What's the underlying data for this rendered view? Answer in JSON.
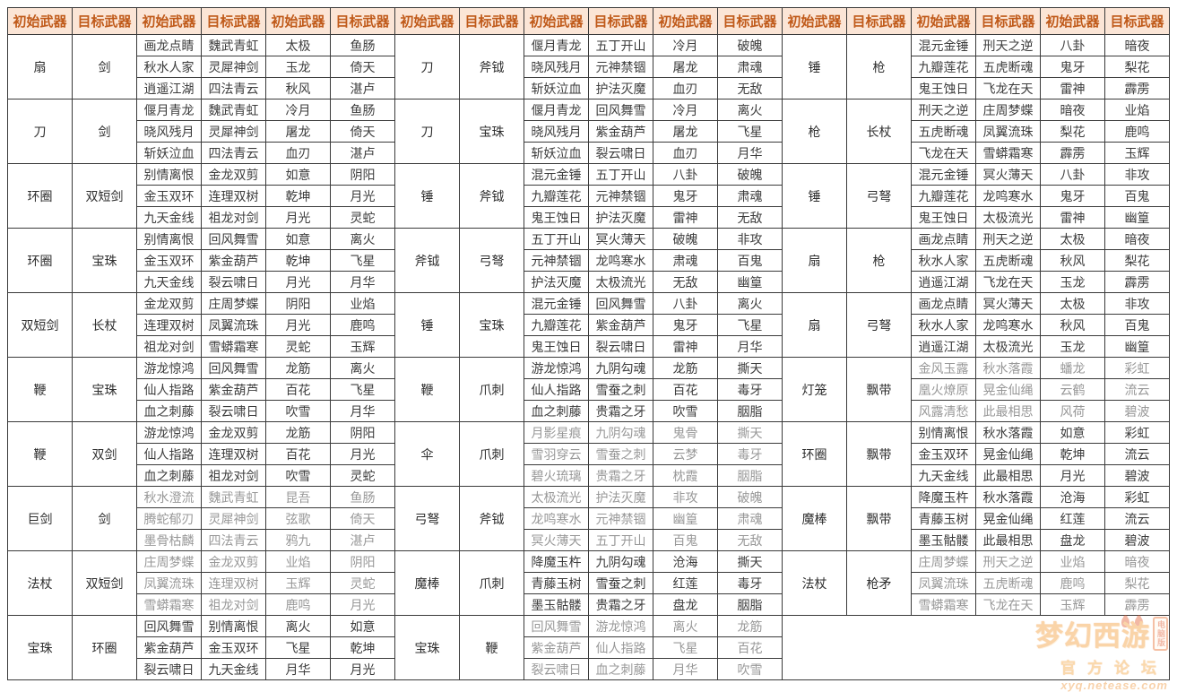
{
  "columns": {
    "initial": "初始武器",
    "target": "目标武器"
  },
  "colors": {
    "header_bg": "#fbe5d6",
    "header_text": "#c05a1a",
    "grid": "#3a3a3a",
    "text": "#3c3c3c",
    "muted_text": "#989898",
    "watermark_orange": "#f59b33"
  },
  "sections": [
    [
      {
        "initial": "扇",
        "target": "剑",
        "muted": false,
        "rows": [
          [
            "画龙点睛",
            "魏武青虹",
            "太极",
            "鱼肠"
          ],
          [
            "秋水人家",
            "灵犀神剑",
            "玉龙",
            "倚天"
          ],
          [
            "逍遥江湖",
            "四法青云",
            "秋风",
            "湛卢"
          ]
        ]
      },
      {
        "initial": "刀",
        "target": "剑",
        "muted": false,
        "rows": [
          [
            "偃月青龙",
            "魏武青虹",
            "冷月",
            "鱼肠"
          ],
          [
            "晓风残月",
            "灵犀神剑",
            "屠龙",
            "倚天"
          ],
          [
            "斩妖泣血",
            "四法青云",
            "血刃",
            "湛卢"
          ]
        ]
      },
      {
        "initial": "环圈",
        "target": "双短剑",
        "muted": false,
        "rows": [
          [
            "别情离恨",
            "金龙双剪",
            "如意",
            "阴阳"
          ],
          [
            "金玉双环",
            "连理双树",
            "乾坤",
            "月光"
          ],
          [
            "九天金线",
            "祖龙对剑",
            "月光",
            "灵蛇"
          ]
        ]
      },
      {
        "initial": "环圈",
        "target": "宝珠",
        "muted": false,
        "rows": [
          [
            "别情离恨",
            "回风舞雪",
            "如意",
            "离火"
          ],
          [
            "金玉双环",
            "紫金葫芦",
            "乾坤",
            "飞星"
          ],
          [
            "九天金线",
            "裂云啸日",
            "月光",
            "月华"
          ]
        ]
      },
      {
        "initial": "双短剑",
        "target": "长杖",
        "muted": false,
        "rows": [
          [
            "金龙双剪",
            "庄周梦蝶",
            "阴阳",
            "业焰"
          ],
          [
            "连理双树",
            "凤翼流珠",
            "月光",
            "鹿鸣"
          ],
          [
            "祖龙对剑",
            "雪蟒霜寒",
            "灵蛇",
            "玉辉"
          ]
        ]
      },
      {
        "initial": "鞭",
        "target": "宝珠",
        "muted": false,
        "rows": [
          [
            "游龙惊鸿",
            "回风舞雪",
            "龙筋",
            "离火"
          ],
          [
            "仙人指路",
            "紫金葫芦",
            "百花",
            "飞星"
          ],
          [
            "血之刺藤",
            "裂云啸日",
            "吹雪",
            "月华"
          ]
        ]
      },
      {
        "initial": "鞭",
        "target": "双剑",
        "muted": false,
        "rows": [
          [
            "游龙惊鸿",
            "金龙双剪",
            "龙筋",
            "阴阳"
          ],
          [
            "仙人指路",
            "连理双树",
            "百花",
            "月光"
          ],
          [
            "血之刺藤",
            "祖龙对剑",
            "吹雪",
            "灵蛇"
          ]
        ]
      },
      {
        "initial": "巨剑",
        "target": "剑",
        "muted": true,
        "rows": [
          [
            "秋水澄流",
            "魏武青虹",
            "昆吾",
            "鱼肠"
          ],
          [
            "腾蛇郁刃",
            "灵犀神剑",
            "弦歌",
            "倚天"
          ],
          [
            "墨骨枯麟",
            "四法青云",
            "鸦九",
            "湛卢"
          ]
        ]
      },
      {
        "initial": "法杖",
        "target": "双短剑",
        "muted": true,
        "rows": [
          [
            "庄周梦蝶",
            "金龙双剪",
            "业焰",
            "阴阳"
          ],
          [
            "凤翼流珠",
            "连理双树",
            "玉辉",
            "灵蛇"
          ],
          [
            "雪蟒霜寒",
            "祖龙对剑",
            "鹿鸣",
            "月光"
          ]
        ]
      },
      {
        "initial": "宝珠",
        "target": "环圈",
        "muted": false,
        "rows": [
          [
            "回风舞雪",
            "别情离恨",
            "离火",
            "如意"
          ],
          [
            "紫金葫芦",
            "金玉双环",
            "飞星",
            "乾坤"
          ],
          [
            "裂云啸日",
            "九天金线",
            "月华",
            "月光"
          ]
        ]
      }
    ],
    [
      {
        "initial": "刀",
        "target": "斧钺",
        "muted": false,
        "rows": [
          [
            "偃月青龙",
            "五丁开山",
            "冷月",
            "破魄"
          ],
          [
            "晓风残月",
            "元神禁锢",
            "屠龙",
            "肃魂"
          ],
          [
            "斩妖泣血",
            "护法灭魔",
            "血刃",
            "无敌"
          ]
        ]
      },
      {
        "initial": "刀",
        "target": "宝珠",
        "muted": false,
        "rows": [
          [
            "偃月青龙",
            "回风舞雪",
            "冷月",
            "离火"
          ],
          [
            "晓风残月",
            "紫金葫芦",
            "屠龙",
            "飞星"
          ],
          [
            "斩妖泣血",
            "裂云啸日",
            "血刃",
            "月华"
          ]
        ]
      },
      {
        "initial": "锤",
        "target": "斧钺",
        "muted": false,
        "rows": [
          [
            "混元金锤",
            "五丁开山",
            "八卦",
            "破魄"
          ],
          [
            "九瓣莲花",
            "元神禁锢",
            "鬼牙",
            "肃魂"
          ],
          [
            "鬼王蚀日",
            "护法灭魔",
            "雷神",
            "无敌"
          ]
        ]
      },
      {
        "initial": "斧钺",
        "target": "弓弩",
        "muted": false,
        "rows": [
          [
            "五丁开山",
            "冥火薄天",
            "破魄",
            "非攻"
          ],
          [
            "元神禁锢",
            "龙鸣寒水",
            "肃魂",
            "百鬼"
          ],
          [
            "护法灭魔",
            "太极流光",
            "无敌",
            "幽篁"
          ]
        ]
      },
      {
        "initial": "锤",
        "target": "宝珠",
        "muted": false,
        "rows": [
          [
            "混元金锤",
            "回风舞雪",
            "八卦",
            "离火"
          ],
          [
            "九瓣莲花",
            "紫金葫芦",
            "鬼牙",
            "飞星"
          ],
          [
            "鬼王蚀日",
            "裂云啸日",
            "雷神",
            "月华"
          ]
        ]
      },
      {
        "initial": "鞭",
        "target": "爪刺",
        "muted": false,
        "rows": [
          [
            "游龙惊鸿",
            "九阴勾魂",
            "龙筋",
            "撕天"
          ],
          [
            "仙人指路",
            "雪蚕之刺",
            "百花",
            "毒牙"
          ],
          [
            "血之刺藤",
            "贵霜之牙",
            "吹雪",
            "胭脂"
          ]
        ]
      },
      {
        "initial": "伞",
        "target": "爪刺",
        "muted": true,
        "rows": [
          [
            "月影星痕",
            "九阴勾魂",
            "鬼骨",
            "撕天"
          ],
          [
            "雪羽穿云",
            "雪蚕之刺",
            "云梦",
            "毒牙"
          ],
          [
            "碧火琉璃",
            "贵霜之牙",
            "枕霞",
            "胭脂"
          ]
        ]
      },
      {
        "initial": "弓弩",
        "target": "斧钺",
        "muted": true,
        "rows": [
          [
            "太极流光",
            "护法灭魔",
            "非攻",
            "破魄"
          ],
          [
            "龙鸣寒水",
            "元神禁锢",
            "幽篁",
            "肃魂"
          ],
          [
            "冥火薄天",
            "五丁开山",
            "百鬼",
            "无敌"
          ]
        ]
      },
      {
        "initial": "魔棒",
        "target": "爪刺",
        "muted": false,
        "rows": [
          [
            "降魔玉杵",
            "九阴勾魂",
            "沧海",
            "撕天"
          ],
          [
            "青藤玉树",
            "雪蚕之刺",
            "红莲",
            "毒牙"
          ],
          [
            "墨玉骷髅",
            "贵霜之牙",
            "盘龙",
            "胭脂"
          ]
        ]
      },
      {
        "initial": "宝珠",
        "target": "鞭",
        "muted": true,
        "rows": [
          [
            "回风舞雪",
            "游龙惊鸿",
            "离火",
            "龙筋"
          ],
          [
            "紫金葫芦",
            "仙人指路",
            "飞星",
            "百花"
          ],
          [
            "裂云啸日",
            "血之刺藤",
            "月华",
            "吹雪"
          ]
        ]
      }
    ],
    [
      {
        "initial": "锤",
        "target": "枪",
        "muted": false,
        "rows": [
          [
            "混元金锤",
            "刑天之逆",
            "八卦",
            "暗夜"
          ],
          [
            "九瓣莲花",
            "五虎断魂",
            "鬼牙",
            "梨花"
          ],
          [
            "鬼王蚀日",
            "飞龙在天",
            "雷神",
            "霹雳"
          ]
        ]
      },
      {
        "initial": "枪",
        "target": "长杖",
        "muted": false,
        "rows": [
          [
            "刑天之逆",
            "庄周梦蝶",
            "暗夜",
            "业焰"
          ],
          [
            "五虎断魂",
            "凤翼流珠",
            "梨花",
            "鹿鸣"
          ],
          [
            "飞龙在天",
            "雪蟒霜寒",
            "霹雳",
            "玉辉"
          ]
        ]
      },
      {
        "initial": "锤",
        "target": "弓弩",
        "muted": false,
        "rows": [
          [
            "混元金锤",
            "冥火薄天",
            "八卦",
            "非攻"
          ],
          [
            "九瓣莲花",
            "龙鸣寒水",
            "鬼牙",
            "百鬼"
          ],
          [
            "鬼王蚀日",
            "太极流光",
            "雷神",
            "幽篁"
          ]
        ]
      },
      {
        "initial": "扇",
        "target": "枪",
        "muted": false,
        "rows": [
          [
            "画龙点睛",
            "刑天之逆",
            "太极",
            "暗夜"
          ],
          [
            "秋水人家",
            "五虎断魂",
            "秋风",
            "梨花"
          ],
          [
            "逍遥江湖",
            "飞龙在天",
            "玉龙",
            "霹雳"
          ]
        ]
      },
      {
        "initial": "扇",
        "target": "弓弩",
        "muted": false,
        "rows": [
          [
            "画龙点睛",
            "冥火薄天",
            "太极",
            "非攻"
          ],
          [
            "秋水人家",
            "龙鸣寒水",
            "秋风",
            "百鬼"
          ],
          [
            "逍遥江湖",
            "太极流光",
            "玉龙",
            "幽篁"
          ]
        ]
      },
      {
        "initial": "灯笼",
        "target": "飘带",
        "muted": true,
        "rows": [
          [
            "金风玉露",
            "秋水落霞",
            "蟠龙",
            "彩虹"
          ],
          [
            "凰火燎原",
            "晃金仙绳",
            "云鹤",
            "流云"
          ],
          [
            "风露清愁",
            "此最相思",
            "风荷",
            "碧波"
          ]
        ]
      },
      {
        "initial": "环圈",
        "target": "飘带",
        "muted": false,
        "rows": [
          [
            "别情离恨",
            "秋水落霞",
            "如意",
            "彩虹"
          ],
          [
            "金玉双环",
            "晃金仙绳",
            "乾坤",
            "流云"
          ],
          [
            "九天金线",
            "此最相思",
            "月光",
            "碧波"
          ]
        ]
      },
      {
        "initial": "魔棒",
        "target": "飘带",
        "muted": false,
        "rows": [
          [
            "降魔玉杵",
            "秋水落霞",
            "沧海",
            "彩虹"
          ],
          [
            "青藤玉树",
            "晃金仙绳",
            "红莲",
            "流云"
          ],
          [
            "墨玉骷髅",
            "此最相思",
            "盘龙",
            "碧波"
          ]
        ]
      },
      {
        "initial": "法杖",
        "target": "枪矛",
        "muted": true,
        "rows": [
          [
            "庄周梦蝶",
            "刑天之逆",
            "业焰",
            "暗夜"
          ],
          [
            "凤翼流珠",
            "五虎断魂",
            "鹿鸣",
            "梨花"
          ],
          [
            "雪蟒霜寒",
            "飞龙在天",
            "玉辉",
            "霹雳"
          ]
        ]
      },
      null
    ]
  ],
  "watermark": {
    "logo": "梦幻西游",
    "badge": "电脑版",
    "forum": "官方论坛",
    "site": "xyq.netease.com"
  }
}
